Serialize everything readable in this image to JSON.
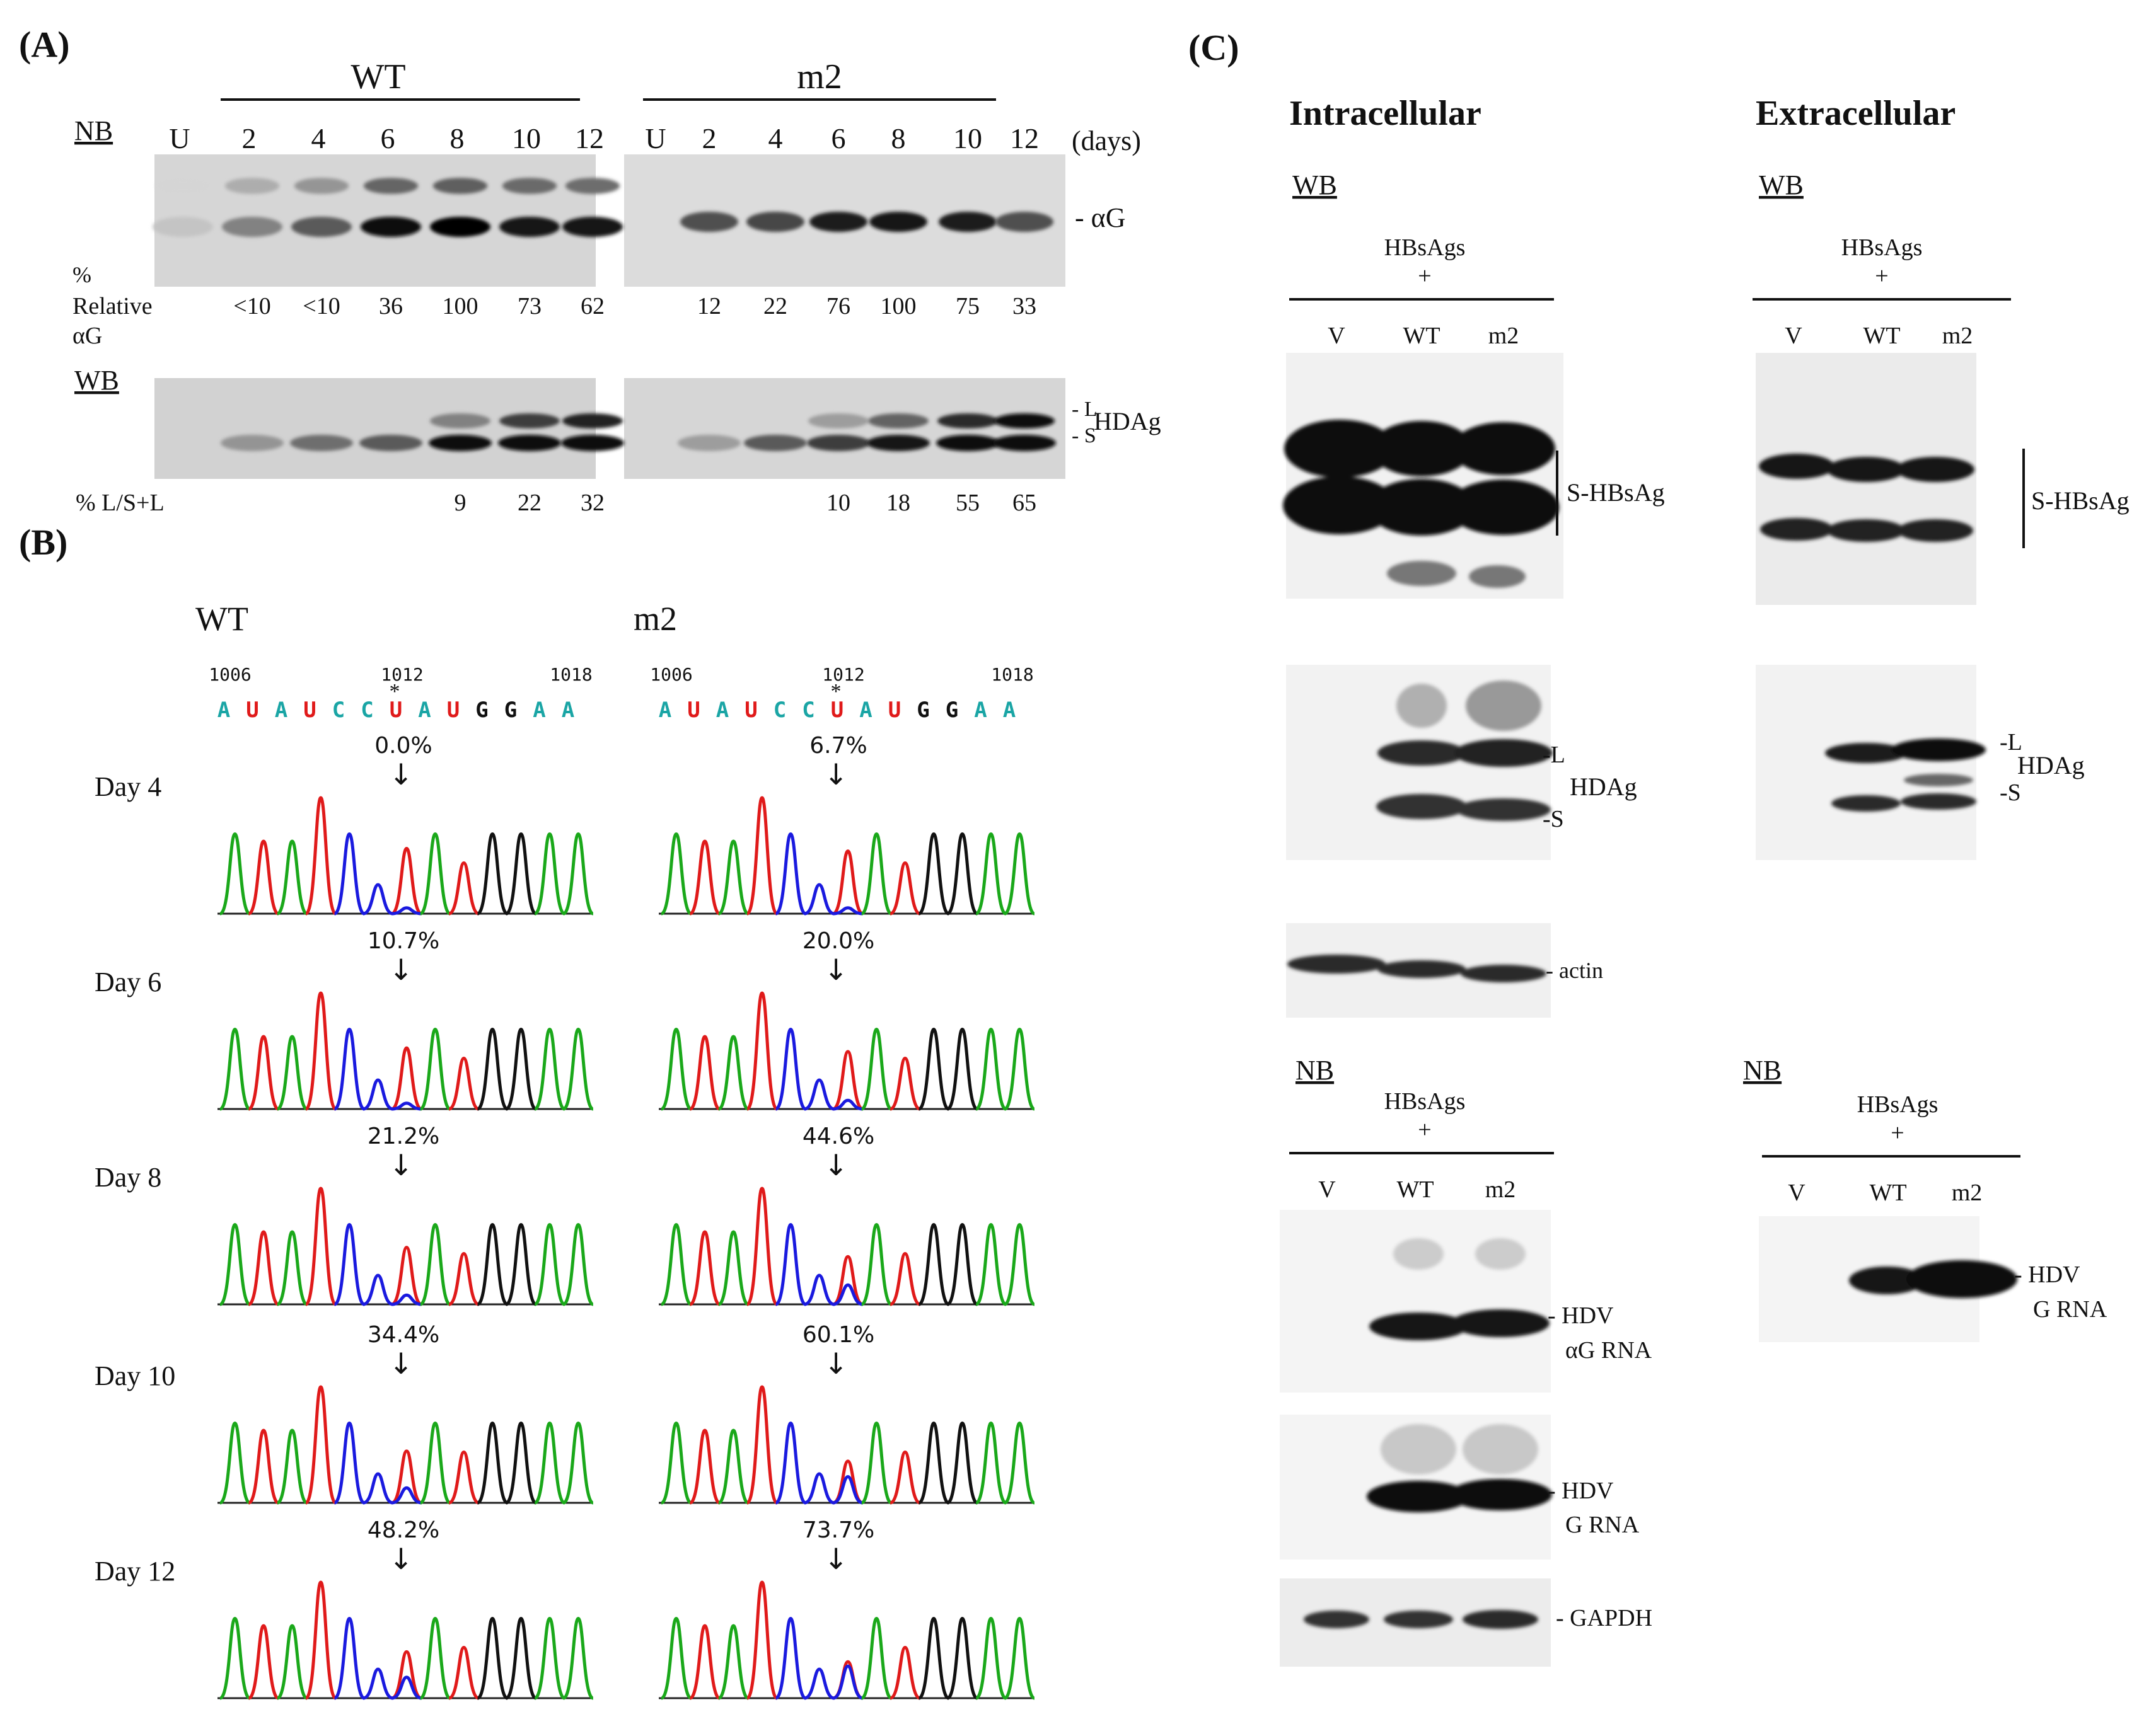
{
  "panelA": {
    "label": "(A)",
    "wt_header": "WT",
    "m2_header": "m2",
    "nb_label": "NB",
    "wb_label": "WB",
    "wt_lanes": [
      "U",
      "2",
      "4",
      "6",
      "8",
      "10",
      "12"
    ],
    "m2_lanes": [
      "U",
      "2",
      "4",
      "6",
      "8",
      "10",
      "12"
    ],
    "days_label": "(days)",
    "ag_marker": "αG",
    "rel_label_1": "%",
    "rel_label_2": "Relative",
    "rel_label_3": "αG",
    "wt_rel": [
      "<10",
      "<10",
      "36",
      "100",
      "73",
      "62"
    ],
    "m2_rel": [
      "12",
      "22",
      "76",
      "100",
      "75",
      "33"
    ],
    "l_marker": "L",
    "s_marker": "S",
    "hdag_marker": "HDAg",
    "ls_label": "% L/S+L",
    "wt_ls": [
      "9",
      "22",
      "32"
    ],
    "m2_ls": [
      "10",
      "18",
      "55",
      "65"
    ],
    "wt_nb_intensity": [
      0.02,
      0.35,
      0.55,
      0.95,
      1.0,
      0.9,
      0.88
    ],
    "m2_nb_intensity": [
      0.0,
      0.6,
      0.65,
      0.85,
      0.9,
      0.85,
      0.6
    ],
    "wt_wb_S": [
      0.0,
      0.25,
      0.45,
      0.55,
      0.95,
      0.95,
      0.95
    ],
    "wt_wb_L": [
      0.0,
      0.0,
      0.0,
      0.0,
      0.35,
      0.7,
      0.85
    ],
    "m2_wb_S": [
      0.0,
      0.2,
      0.55,
      0.7,
      0.9,
      0.95,
      0.95
    ],
    "m2_wb_L": [
      0.0,
      0.0,
      0.0,
      0.2,
      0.5,
      0.8,
      0.95
    ]
  },
  "panelB": {
    "label": "(B)",
    "wt_title": "WT",
    "m2_title": "m2",
    "pos_start": "1006",
    "pos_mid": "1012",
    "pos_end": "1018",
    "sequence": [
      "A",
      "U",
      "A",
      "U",
      "C",
      "C",
      "U",
      "A",
      "U",
      "G",
      "G",
      "A",
      "A"
    ],
    "edit_mark": "*",
    "days": [
      "Day 4",
      "Day 6",
      "Day 8",
      "Day 10",
      "Day 12"
    ],
    "wt_pct": [
      "0.0%",
      "10.7%",
      "21.2%",
      "34.4%",
      "48.2%"
    ],
    "m2_pct": [
      "6.7%",
      "20.0%",
      "44.6%",
      "60.1%",
      "73.7%"
    ],
    "arrow_glyph": "↓",
    "colors": {
      "A": "#1aa81a",
      "U": "#e01a1a",
      "C": "#1a1adf",
      "G": "#111111"
    },
    "seq_colors": {
      "A": "#1aa5a5",
      "U": "#e01a1a",
      "C": "#1aa5a5",
      "G": "#111111"
    }
  },
  "panelC": {
    "label": "(C)",
    "intra_title": "Intracellular",
    "extra_title": "Extracellular",
    "wb_label": "WB",
    "nb_label": "NB",
    "hbsags": "HBsAgs",
    "plus": "+",
    "lanes": [
      "V",
      "WT",
      "m2"
    ],
    "s_hbsag": "S-HBsAg",
    "l_marker": "L",
    "s_marker": "S",
    "hdag": "HDAg",
    "actin": "actin",
    "hdv_1": "HDV",
    "ag_rna": "αG RNA",
    "g_rna": "G RNA",
    "gapdh": "GAPDH",
    "dash": "-"
  }
}
